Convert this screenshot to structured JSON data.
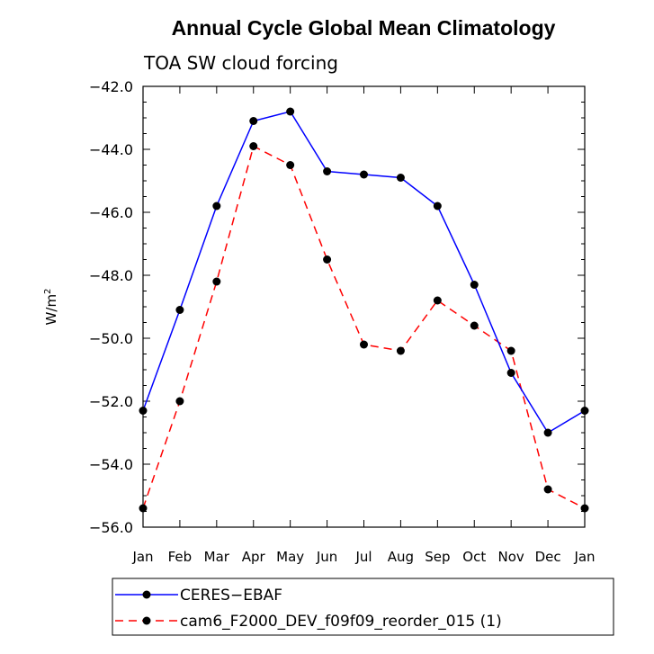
{
  "chart_data": {
    "type": "line",
    "title": "Annual Cycle Global Mean Climatology",
    "subtitle": "TOA SW cloud forcing",
    "xlabel": "",
    "ylabel": "W/m",
    "ylabel_superscript": "2",
    "ylim": [
      -56.0,
      -42.0
    ],
    "yticks": [
      "-42.0",
      "-44.0",
      "-46.0",
      "-48.0",
      "-50.0",
      "-52.0",
      "-54.0",
      "-56.0"
    ],
    "ytick_values": [
      -42,
      -44,
      -46,
      -48,
      -50,
      -52,
      -54,
      -56
    ],
    "categories": [
      "Jan",
      "Feb",
      "Mar",
      "Apr",
      "May",
      "Jun",
      "Jul",
      "Aug",
      "Sep",
      "Oct",
      "Nov",
      "Dec",
      "Jan"
    ],
    "series": [
      {
        "name": "CERES−EBAF",
        "color": "#0000ff",
        "dash": "solid",
        "values": [
          -52.3,
          -49.1,
          -45.8,
          -43.1,
          -42.8,
          -44.7,
          -44.8,
          -44.9,
          -45.8,
          -48.3,
          -51.1,
          -53.0,
          -52.3
        ]
      },
      {
        "name": "cam6_F2000_DEV_f09f09_reorder_015 (1)",
        "color": "#ff0000",
        "dash": "dashed",
        "values": [
          -55.4,
          -52.0,
          -48.2,
          -43.9,
          -44.5,
          -47.5,
          -50.2,
          -50.4,
          -48.8,
          -49.6,
          -50.4,
          -54.8,
          -55.4
        ]
      }
    ],
    "legend_position": "bottom-left"
  }
}
